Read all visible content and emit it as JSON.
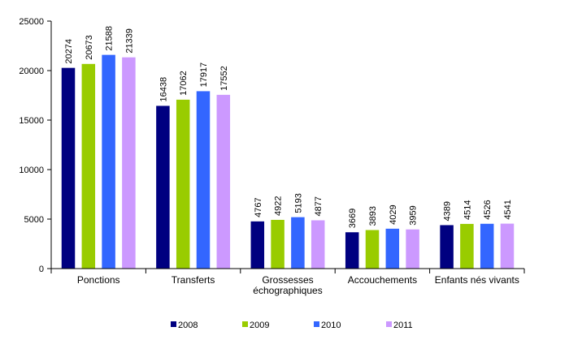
{
  "chart_data": {
    "type": "bar",
    "categories": [
      [
        "Ponctions"
      ],
      [
        "Transferts"
      ],
      [
        "Grossesses",
        "échographiques"
      ],
      [
        "Accouchements"
      ],
      [
        "Enfants nés vivants"
      ]
    ],
    "series": [
      {
        "name": "2008",
        "color": "#000080",
        "values": [
          20274,
          16438,
          4767,
          3669,
          4389
        ]
      },
      {
        "name": "2009",
        "color": "#99CC00",
        "values": [
          20673,
          17062,
          4922,
          3893,
          4514
        ]
      },
      {
        "name": "2010",
        "color": "#3366FF",
        "values": [
          21588,
          17917,
          5193,
          4029,
          4526
        ]
      },
      {
        "name": "2011",
        "color": "#CC99FF",
        "values": [
          21339,
          17552,
          4877,
          3959,
          4541
        ]
      }
    ],
    "title": "",
    "xlabel": "",
    "ylabel": "",
    "ylim": [
      0,
      25000
    ],
    "yticks": [
      "0",
      "5000",
      "10000",
      "15000",
      "20000",
      "25000"
    ],
    "grid": false,
    "legend": "bottom"
  }
}
